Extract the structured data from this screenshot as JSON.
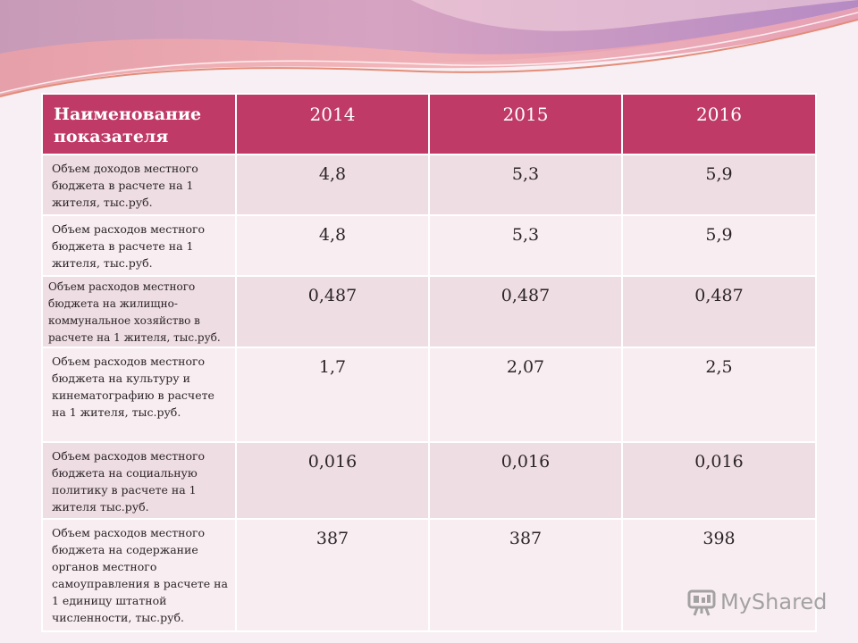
{
  "table": {
    "headers": [
      "Наименование показателя",
      "2014",
      "2015",
      "2016"
    ],
    "rows": [
      {
        "label": "Объем доходов местного бюджета в расчете на 1 жителя,  тыс.руб.",
        "values": [
          "4,8",
          "5,3",
          "5,9"
        ]
      },
      {
        "label": "Объем расходов местного бюджета  в расчете на 1 жителя, тыс.руб.",
        "values": [
          "4,8",
          "5,3",
          "5,9"
        ]
      },
      {
        "label": "Объем расходов местного бюджета на жилищно-коммунальное хозяйство в расчете на 1 жителя, тыс.руб.",
        "values": [
          "0,487",
          "0,487",
          "0,487"
        ]
      },
      {
        "label": "Объем расходов местного бюджета на культуру и кинематографию в расчете на 1 жителя, тыс.руб.",
        "values": [
          "1,7",
          "2,07",
          "2,5"
        ]
      },
      {
        "label": "Объем расходов местного бюджета на социальную политику в расчете на 1 жителя тыс.руб.",
        "values": [
          "0,016",
          "0,016",
          "0,016"
        ]
      },
      {
        "label": "Объем расходов местного бюджета на содержание органов местного самоуправления в расчете на 1 единицу штатной численности, тыс.руб.",
        "values": [
          "387",
          "387",
          "398"
        ]
      }
    ]
  },
  "watermark": {
    "text": "MyShared",
    "icon": "presentation-board-icon"
  },
  "colors": {
    "header": "#bf3a66",
    "row_odd": "#eedde3",
    "row_even": "#f8eef2"
  }
}
